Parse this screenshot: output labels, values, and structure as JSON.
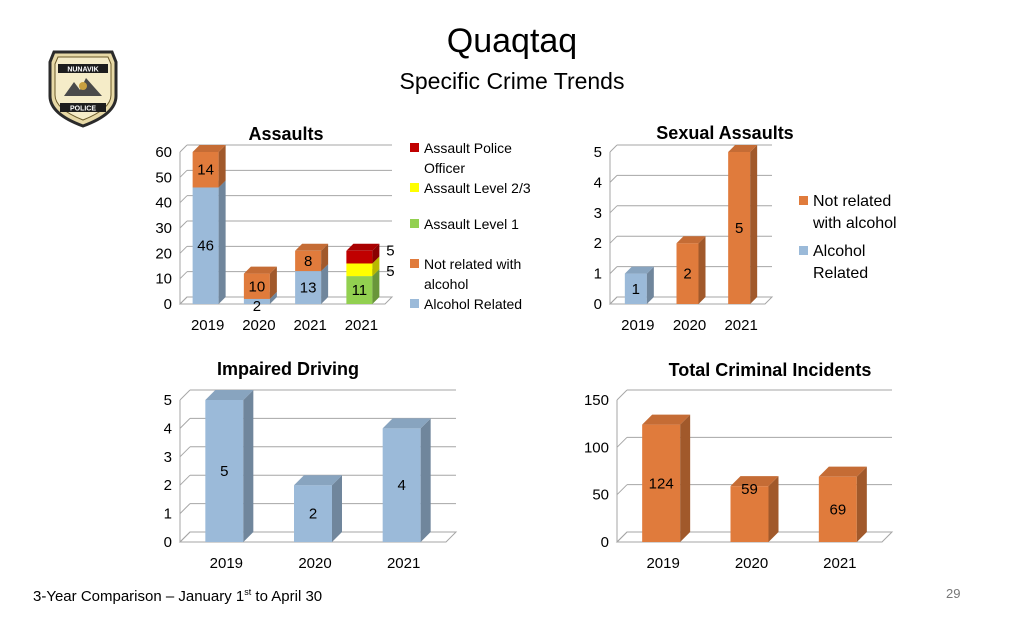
{
  "title": "Quaqtaq",
  "subtitle": "Specific Crime Trends",
  "footer": {
    "pre": "3-Year Comparison – January 1",
    "sup": "st",
    "post": " to April 30"
  },
  "page_number": "29",
  "logo": {
    "name": "NUNAVIK",
    "sub": "POLICE"
  },
  "colors": {
    "red": "#c00000",
    "yellow": "#ffff00",
    "green": "#92d050",
    "orange": "#e07b3c",
    "blue": "#9bbad9"
  },
  "legends": {
    "assaults": [
      {
        "label": "Assault Police Officer",
        "color": "#c00000"
      },
      {
        "label": "Assault Level 2/3",
        "color": "#ffff00"
      },
      {
        "label": "Assault Level 1",
        "color": "#92d050"
      },
      {
        "label": "Not related with alcohol",
        "color": "#e07b3c"
      },
      {
        "label": "Alcohol Related",
        "color": "#9bbad9"
      }
    ],
    "sexual": [
      {
        "label": "Not related with alcohol",
        "color": "#e07b3c"
      },
      {
        "label": "Alcohol Related",
        "color": "#9bbad9"
      }
    ]
  },
  "chart_data": [
    {
      "id": "assaults",
      "type": "bar",
      "title": "Assaults",
      "stacked": true,
      "categories": [
        "2019",
        "2020",
        "2021",
        "2021"
      ],
      "ylim": [
        0,
        60
      ],
      "yticks": [
        0,
        10,
        20,
        30,
        40,
        50,
        60
      ],
      "series": [
        {
          "name": "Alcohol Related",
          "color": "#9bbad9",
          "values": [
            46,
            2,
            13,
            null
          ]
        },
        {
          "name": "Not related with alcohol",
          "color": "#e07b3c",
          "values": [
            14,
            10,
            8,
            null
          ]
        },
        {
          "name": "Assault Level 1",
          "color": "#92d050",
          "values": [
            null,
            null,
            null,
            11
          ]
        },
        {
          "name": "Assault Level 2/3",
          "color": "#ffff00",
          "values": [
            null,
            null,
            null,
            5
          ]
        },
        {
          "name": "Assault Police Officer",
          "color": "#c00000",
          "values": [
            null,
            null,
            null,
            5
          ]
        }
      ]
    },
    {
      "id": "sexual",
      "type": "bar",
      "title": "Sexual Assaults",
      "categories": [
        "2019",
        "2020",
        "2021"
      ],
      "ylim": [
        0,
        5
      ],
      "yticks": [
        0,
        1,
        2,
        3,
        4,
        5
      ],
      "series": [
        {
          "name": "Alcohol Related",
          "color": "#9bbad9",
          "values": [
            1,
            null,
            null
          ]
        },
        {
          "name": "Not related with alcohol",
          "color": "#e07b3c",
          "values": [
            null,
            2,
            5
          ]
        }
      ]
    },
    {
      "id": "impaired",
      "type": "bar",
      "title": "Impaired Driving",
      "categories": [
        "2019",
        "2020",
        "2021"
      ],
      "ylim": [
        0,
        5
      ],
      "yticks": [
        0,
        1,
        2,
        3,
        4,
        5
      ],
      "series": [
        {
          "color": "#9bbad9",
          "values": [
            5,
            2,
            4
          ]
        }
      ]
    },
    {
      "id": "total",
      "type": "bar",
      "title": "Total Criminal Incidents",
      "categories": [
        "2019",
        "2020",
        "2021"
      ],
      "ylim": [
        0,
        150
      ],
      "yticks": [
        0,
        50,
        100,
        150
      ],
      "series": [
        {
          "color": "#e07b3c",
          "values": [
            124,
            59,
            69
          ]
        }
      ]
    }
  ]
}
